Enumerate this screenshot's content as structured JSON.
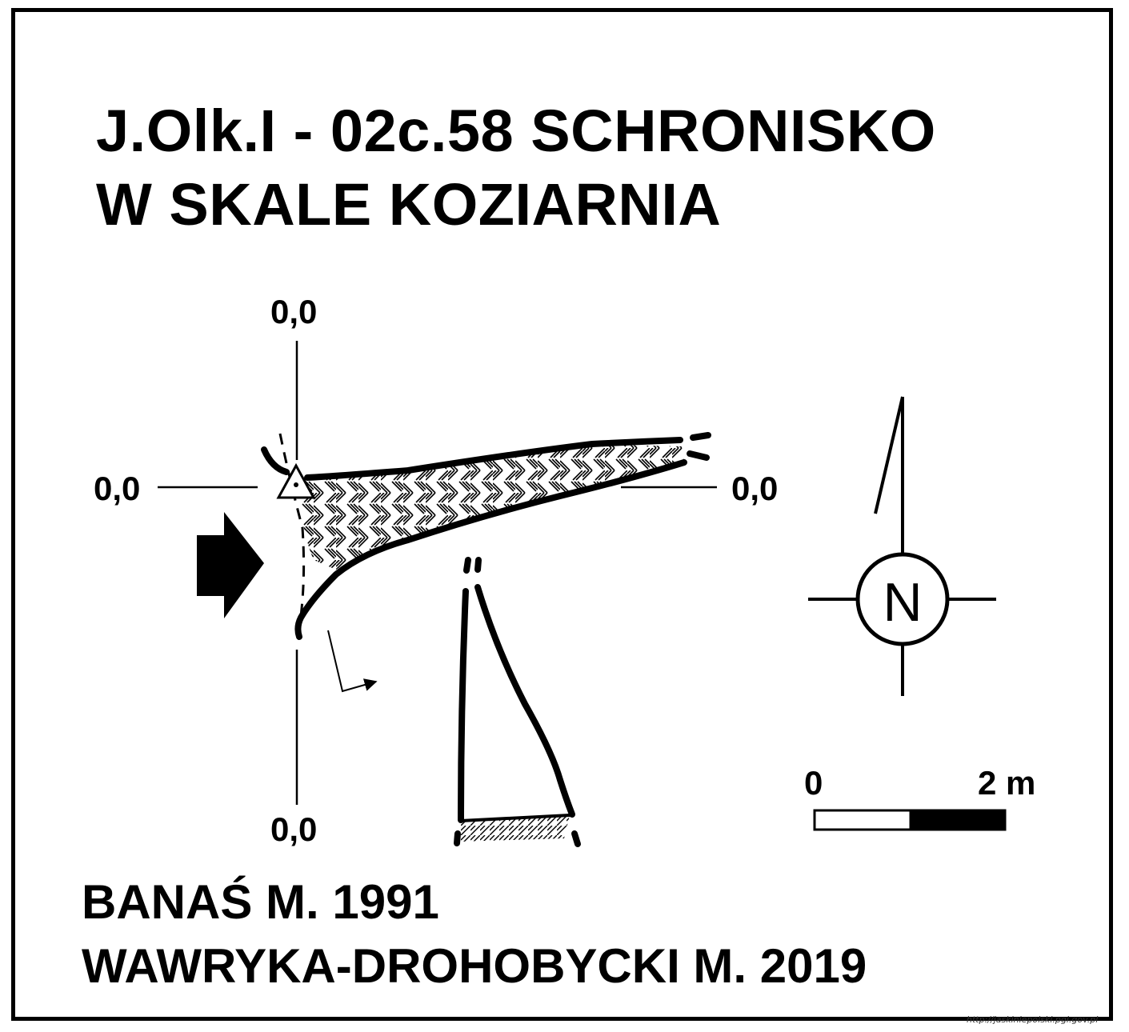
{
  "title": {
    "line1": "J.Olk.I - 02c.58  SCHRONISKO",
    "line2": "W SKALE KOZIARNIA"
  },
  "section_labels": {
    "top": "0,0",
    "left": "0,0",
    "right": "0,0",
    "bottom": "0,0"
  },
  "north_arrow": {
    "letter": "N"
  },
  "scale_bar": {
    "start_label": "0",
    "end_label": "2 m"
  },
  "authors": {
    "line1": "BANAŚ M. 1991",
    "line2": "WAWRYKA-DROHOBYCKI M. 2019"
  },
  "source_url": "http://jaskiniepolski.pgi.gov.pl",
  "colors": {
    "ink": "#000000",
    "paper": "#ffffff"
  }
}
